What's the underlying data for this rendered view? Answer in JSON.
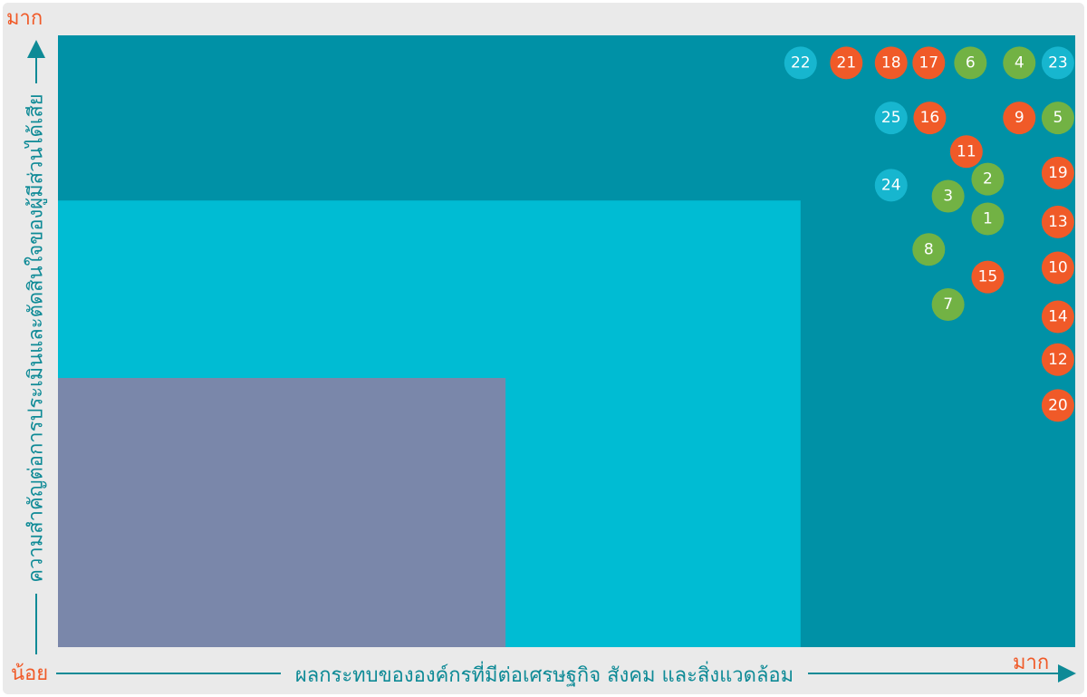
{
  "colors": {
    "panel_bg": "#eaeaea",
    "zone_high": "#0091a6",
    "zone_mid": "#00bcd3",
    "zone_low": "#7a87aa",
    "axis_line": "#0e8a96",
    "axis_text": "#0e8a96",
    "high_label": "#f05a28",
    "low_label": "#0e8a96"
  },
  "labels": {
    "y_high": "มาก",
    "x_low": "น้อย",
    "x_high": "มาก",
    "x_title": "ผลกระทบขององค์กรที่มีต่อเศรษฐกิจ สังคม และสิ่งแวดล้อม",
    "y_title": "ความสำคัญต่อการประเมินและตัดสินใจของผู้มีส่วนได้เสีย"
  },
  "chart_data": {
    "type": "scatter",
    "title": "",
    "xlabel": "ผลกระทบขององค์กรที่มีต่อเศรษฐกิจ สังคม และสิ่งแวดล้อม",
    "ylabel": "ความสำคัญต่อการประเมินและตัดสินใจของผู้มีส่วนได้เสีย",
    "x_range_labels": [
      "น้อย",
      "มาก"
    ],
    "y_range_labels": [
      "น้อย",
      "มาก"
    ],
    "xlim": [
      0,
      100
    ],
    "ylim": [
      0,
      100
    ],
    "zones": [
      {
        "name": "high",
        "x": [
          0,
          100
        ],
        "y": [
          0,
          100
        ],
        "color": "#0091a6"
      },
      {
        "name": "medium",
        "x": [
          0,
          73
        ],
        "y": [
          0,
          73
        ],
        "color": "#00bcd3"
      },
      {
        "name": "low",
        "x": [
          0,
          44
        ],
        "y": [
          0,
          44
        ],
        "color": "#7a87aa"
      }
    ],
    "category_colors": {
      "orange": "#f05a28",
      "green": "#72b244",
      "cyan": "#17b6cf"
    },
    "points": [
      {
        "label": "1",
        "x": 91.4,
        "y": 70.0,
        "category": "green"
      },
      {
        "label": "2",
        "x": 91.4,
        "y": 76.5,
        "category": "green"
      },
      {
        "label": "3",
        "x": 87.5,
        "y": 73.7,
        "category": "green"
      },
      {
        "label": "4",
        "x": 94.5,
        "y": 95.5,
        "category": "green"
      },
      {
        "label": "5",
        "x": 98.3,
        "y": 86.5,
        "category": "green"
      },
      {
        "label": "6",
        "x": 89.7,
        "y": 95.5,
        "category": "green"
      },
      {
        "label": "7",
        "x": 87.5,
        "y": 56.0,
        "category": "green"
      },
      {
        "label": "8",
        "x": 85.6,
        "y": 65.0,
        "category": "green"
      },
      {
        "label": "9",
        "x": 94.5,
        "y": 86.5,
        "category": "orange"
      },
      {
        "label": "10",
        "x": 98.3,
        "y": 62.0,
        "category": "orange"
      },
      {
        "label": "11",
        "x": 89.3,
        "y": 81.0,
        "category": "orange"
      },
      {
        "label": "12",
        "x": 98.3,
        "y": 47.0,
        "category": "orange"
      },
      {
        "label": "13",
        "x": 98.3,
        "y": 69.5,
        "category": "orange"
      },
      {
        "label": "14",
        "x": 98.3,
        "y": 54.0,
        "category": "orange"
      },
      {
        "label": "15",
        "x": 91.4,
        "y": 60.5,
        "category": "orange"
      },
      {
        "label": "16",
        "x": 85.7,
        "y": 86.5,
        "category": "orange"
      },
      {
        "label": "17",
        "x": 85.6,
        "y": 95.5,
        "category": "orange"
      },
      {
        "label": "18",
        "x": 81.9,
        "y": 95.5,
        "category": "orange"
      },
      {
        "label": "19",
        "x": 98.3,
        "y": 77.5,
        "category": "orange"
      },
      {
        "label": "20",
        "x": 98.3,
        "y": 39.5,
        "category": "orange"
      },
      {
        "label": "21",
        "x": 77.5,
        "y": 95.5,
        "category": "orange"
      },
      {
        "label": "22",
        "x": 73.0,
        "y": 95.5,
        "category": "cyan"
      },
      {
        "label": "23",
        "x": 98.3,
        "y": 95.5,
        "category": "cyan"
      },
      {
        "label": "24",
        "x": 81.9,
        "y": 75.5,
        "category": "cyan"
      },
      {
        "label": "25",
        "x": 81.9,
        "y": 86.5,
        "category": "cyan"
      }
    ]
  }
}
